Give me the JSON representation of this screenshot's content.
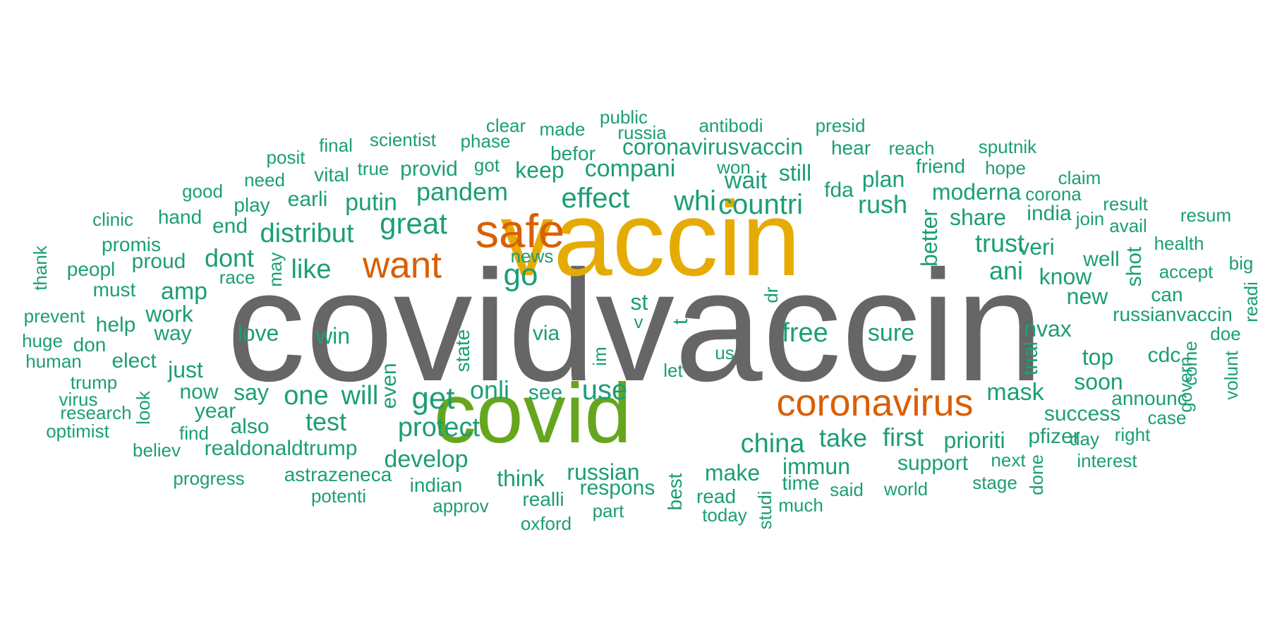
{
  "colors": {
    "tier1": "#666666",
    "tier2": "#E6AB02",
    "tier3": "#66A61E",
    "tier4": "#D95F02",
    "tier5": "#1B9E77"
  },
  "words": [
    {
      "text": "covidvaccin",
      "tier": "tier1"
    },
    {
      "text": "vaccin",
      "tier": "tier2"
    },
    {
      "text": "covid",
      "tier": "tier3"
    },
    {
      "text": "safe",
      "tier": "tier4"
    },
    {
      "text": "coronavirus",
      "tier": "tier4"
    },
    {
      "text": "want",
      "tier": "tier4"
    },
    {
      "text": "public",
      "tier": "tier5"
    },
    {
      "text": "russia",
      "tier": "tier5"
    },
    {
      "text": "antibodi",
      "tier": "tier5"
    },
    {
      "text": "presid",
      "tier": "tier5"
    },
    {
      "text": "clear",
      "tier": "tier5"
    },
    {
      "text": "made",
      "tier": "tier5"
    },
    {
      "text": "scientist",
      "tier": "tier5"
    },
    {
      "text": "phase",
      "tier": "tier5"
    },
    {
      "text": "final",
      "tier": "tier5"
    },
    {
      "text": "hear",
      "tier": "tier5"
    },
    {
      "text": "reach",
      "tier": "tier5"
    },
    {
      "text": "sputnik",
      "tier": "tier5"
    },
    {
      "text": "posit",
      "tier": "tier5"
    },
    {
      "text": "befor",
      "tier": "tier5"
    },
    {
      "text": "coronavirusvaccin",
      "tier": "tier5"
    },
    {
      "text": "friend",
      "tier": "tier5"
    },
    {
      "text": "hope",
      "tier": "tier5"
    },
    {
      "text": "need",
      "tier": "tier5"
    },
    {
      "text": "vital",
      "tier": "tier5"
    },
    {
      "text": "true",
      "tier": "tier5"
    },
    {
      "text": "provid",
      "tier": "tier5"
    },
    {
      "text": "got",
      "tier": "tier5"
    },
    {
      "text": "keep",
      "tier": "tier5"
    },
    {
      "text": "compani",
      "tier": "tier5"
    },
    {
      "text": "won",
      "tier": "tier5"
    },
    {
      "text": "wait",
      "tier": "tier5"
    },
    {
      "text": "still",
      "tier": "tier5"
    },
    {
      "text": "plan",
      "tier": "tier5"
    },
    {
      "text": "claim",
      "tier": "tier5"
    },
    {
      "text": "good",
      "tier": "tier5"
    },
    {
      "text": "play",
      "tier": "tier5"
    },
    {
      "text": "earli",
      "tier": "tier5"
    },
    {
      "text": "putin",
      "tier": "tier5"
    },
    {
      "text": "pandem",
      "tier": "tier5"
    },
    {
      "text": "effect",
      "tier": "tier5"
    },
    {
      "text": "whi",
      "tier": "tier5"
    },
    {
      "text": "countri",
      "tier": "tier5"
    },
    {
      "text": "fda",
      "tier": "tier5"
    },
    {
      "text": "rush",
      "tier": "tier5"
    },
    {
      "text": "moderna",
      "tier": "tier5"
    },
    {
      "text": "corona",
      "tier": "tier5"
    },
    {
      "text": "result",
      "tier": "tier5"
    },
    {
      "text": "clinic",
      "tier": "tier5"
    },
    {
      "text": "hand",
      "tier": "tier5"
    },
    {
      "text": "end",
      "tier": "tier5"
    },
    {
      "text": "great",
      "tier": "tier5"
    },
    {
      "text": "share",
      "tier": "tier5"
    },
    {
      "text": "india",
      "tier": "tier5"
    },
    {
      "text": "join",
      "tier": "tier5"
    },
    {
      "text": "avail",
      "tier": "tier5"
    },
    {
      "text": "resum",
      "tier": "tier5"
    },
    {
      "text": "distribut",
      "tier": "tier5"
    },
    {
      "text": "better",
      "tier": "tier5"
    },
    {
      "text": "promis",
      "tier": "tier5"
    },
    {
      "text": "dont",
      "tier": "tier5"
    },
    {
      "text": "trust",
      "tier": "tier5"
    },
    {
      "text": "veri",
      "tier": "tier5"
    },
    {
      "text": "health",
      "tier": "tier5"
    },
    {
      "text": "thank",
      "tier": "tier5"
    },
    {
      "text": "peopl",
      "tier": "tier5"
    },
    {
      "text": "proud",
      "tier": "tier5"
    },
    {
      "text": "may",
      "tier": "tier5"
    },
    {
      "text": "news",
      "tier": "tier5"
    },
    {
      "text": "like",
      "tier": "tier5"
    },
    {
      "text": "well",
      "tier": "tier5"
    },
    {
      "text": "big",
      "tier": "tier5"
    },
    {
      "text": "ani",
      "tier": "tier5"
    },
    {
      "text": "shot",
      "tier": "tier5"
    },
    {
      "text": "accept",
      "tier": "tier5"
    },
    {
      "text": "race",
      "tier": "tier5"
    },
    {
      "text": "go",
      "tier": "tier5"
    },
    {
      "text": "know",
      "tier": "tier5"
    },
    {
      "text": "must",
      "tier": "tier5"
    },
    {
      "text": "amp",
      "tier": "tier5"
    },
    {
      "text": "can",
      "tier": "tier5"
    },
    {
      "text": "readi",
      "tier": "tier5"
    },
    {
      "text": "dr",
      "tier": "tier5"
    },
    {
      "text": "new",
      "tier": "tier5"
    },
    {
      "text": "prevent",
      "tier": "tier5"
    },
    {
      "text": "work",
      "tier": "tier5"
    },
    {
      "text": "st",
      "tier": "tier5"
    },
    {
      "text": "russianvaccin",
      "tier": "tier5"
    },
    {
      "text": "help",
      "tier": "tier5"
    },
    {
      "text": "v",
      "tier": "tier5"
    },
    {
      "text": "huge",
      "tier": "tier5"
    },
    {
      "text": "don",
      "tier": "tier5"
    },
    {
      "text": "way",
      "tier": "tier5"
    },
    {
      "text": "love",
      "tier": "tier5"
    },
    {
      "text": "win",
      "tier": "tier5"
    },
    {
      "text": "via",
      "tier": "tier5"
    },
    {
      "text": "t",
      "tier": "tier5"
    },
    {
      "text": "free",
      "tier": "tier5"
    },
    {
      "text": "sure",
      "tier": "tier5"
    },
    {
      "text": "nvax",
      "tier": "tier5"
    },
    {
      "text": "doe",
      "tier": "tier5"
    },
    {
      "text": "human",
      "tier": "tier5"
    },
    {
      "text": "elect",
      "tier": "tier5"
    },
    {
      "text": "state",
      "tier": "tier5"
    },
    {
      "text": "im",
      "tier": "tier5"
    },
    {
      "text": "us",
      "tier": "tier5"
    },
    {
      "text": "trial",
      "tier": "tier5"
    },
    {
      "text": "top",
      "tier": "tier5"
    },
    {
      "text": "cdc",
      "tier": "tier5"
    },
    {
      "text": "come",
      "tier": "tier5"
    },
    {
      "text": "volunt",
      "tier": "tier5"
    },
    {
      "text": "just",
      "tier": "tier5"
    },
    {
      "text": "let",
      "tier": "tier5"
    },
    {
      "text": "govern",
      "tier": "tier5"
    },
    {
      "text": "trump",
      "tier": "tier5"
    },
    {
      "text": "even",
      "tier": "tier5"
    },
    {
      "text": "soon",
      "tier": "tier5"
    },
    {
      "text": "now",
      "tier": "tier5"
    },
    {
      "text": "say",
      "tier": "tier5"
    },
    {
      "text": "onli",
      "tier": "tier5"
    },
    {
      "text": "see",
      "tier": "tier5"
    },
    {
      "text": "use",
      "tier": "tier5"
    },
    {
      "text": "mask",
      "tier": "tier5"
    },
    {
      "text": "virus",
      "tier": "tier5"
    },
    {
      "text": "one",
      "tier": "tier5"
    },
    {
      "text": "will",
      "tier": "tier5"
    },
    {
      "text": "get",
      "tier": "tier5"
    },
    {
      "text": "announc",
      "tier": "tier5"
    },
    {
      "text": "look",
      "tier": "tier5"
    },
    {
      "text": "year",
      "tier": "tier5"
    },
    {
      "text": "research",
      "tier": "tier5"
    },
    {
      "text": "success",
      "tier": "tier5"
    },
    {
      "text": "case",
      "tier": "tier5"
    },
    {
      "text": "optimist",
      "tier": "tier5"
    },
    {
      "text": "find",
      "tier": "tier5"
    },
    {
      "text": "also",
      "tier": "tier5"
    },
    {
      "text": "test",
      "tier": "tier5"
    },
    {
      "text": "protect",
      "tier": "tier5"
    },
    {
      "text": "china",
      "tier": "tier5"
    },
    {
      "text": "take",
      "tier": "tier5"
    },
    {
      "text": "first",
      "tier": "tier5"
    },
    {
      "text": "prioriti",
      "tier": "tier5"
    },
    {
      "text": "pfizer",
      "tier": "tier5"
    },
    {
      "text": "right",
      "tier": "tier5"
    },
    {
      "text": "believ",
      "tier": "tier5"
    },
    {
      "text": "realdonaldtrump",
      "tier": "tier5"
    },
    {
      "text": "develop",
      "tier": "tier5"
    },
    {
      "text": "day",
      "tier": "tier5"
    },
    {
      "text": "next",
      "tier": "tier5"
    },
    {
      "text": "interest",
      "tier": "tier5"
    },
    {
      "text": "immun",
      "tier": "tier5"
    },
    {
      "text": "support",
      "tier": "tier5"
    },
    {
      "text": "done",
      "tier": "tier5"
    },
    {
      "text": "think",
      "tier": "tier5"
    },
    {
      "text": "russian",
      "tier": "tier5"
    },
    {
      "text": "make",
      "tier": "tier5"
    },
    {
      "text": "progress",
      "tier": "tier5"
    },
    {
      "text": "astrazeneca",
      "tier": "tier5"
    },
    {
      "text": "indian",
      "tier": "tier5"
    },
    {
      "text": "respons",
      "tier": "tier5"
    },
    {
      "text": "best",
      "tier": "tier5"
    },
    {
      "text": "time",
      "tier": "tier5"
    },
    {
      "text": "said",
      "tier": "tier5"
    },
    {
      "text": "world",
      "tier": "tier5"
    },
    {
      "text": "stage",
      "tier": "tier5"
    },
    {
      "text": "potenti",
      "tier": "tier5"
    },
    {
      "text": "realli",
      "tier": "tier5"
    },
    {
      "text": "read",
      "tier": "tier5"
    },
    {
      "text": "studi",
      "tier": "tier5"
    },
    {
      "text": "approv",
      "tier": "tier5"
    },
    {
      "text": "part",
      "tier": "tier5"
    },
    {
      "text": "much",
      "tier": "tier5"
    },
    {
      "text": "today",
      "tier": "tier5"
    },
    {
      "text": "oxford",
      "tier": "tier5"
    }
  ]
}
